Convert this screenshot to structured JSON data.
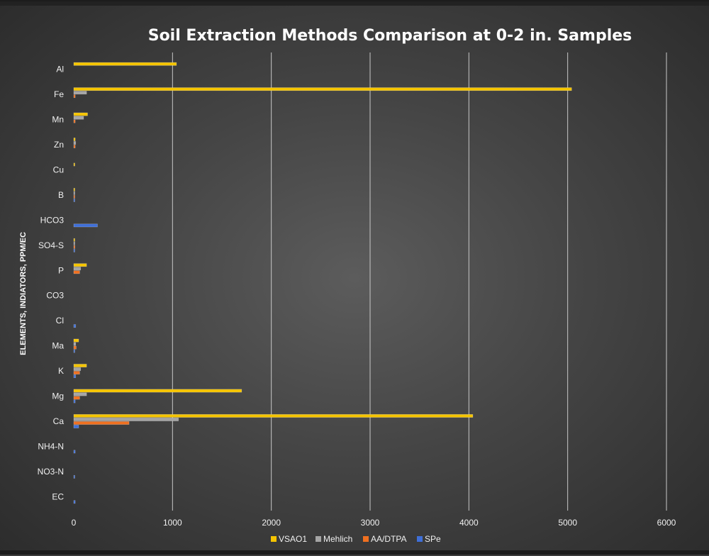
{
  "chart_data": {
    "type": "bar",
    "orientation": "horizontal",
    "title": "Soil Extraction Methods Comparison at 0-2 in. Samples",
    "ylabel": "ELEMENTS, INDIATORS, PPM/EC",
    "xlabel": "",
    "xlim": [
      0,
      6000
    ],
    "xticks": [
      0,
      1000,
      2000,
      3000,
      4000,
      5000,
      6000
    ],
    "grid": true,
    "legend_position": "bottom",
    "categories": [
      "Al",
      "Fe",
      "Mn",
      "Zn",
      "Cu",
      "B",
      "HCO3",
      "SO4-S",
      "P",
      "CO3",
      "Cl",
      "Ma",
      "K",
      "Mg",
      "Ca",
      "NH4-N",
      "NO3-N",
      "EC"
    ],
    "series": [
      {
        "name": "VSAO1",
        "color": "#f5c400",
        "values": [
          1040,
          5040,
          140,
          15,
          8,
          5,
          0,
          8,
          130,
          0,
          0,
          50,
          130,
          1700,
          4040,
          0,
          0,
          0
        ]
      },
      {
        "name": "Mehlich",
        "color": "#a5a5a5",
        "values": [
          0,
          130,
          100,
          20,
          0,
          10,
          0,
          10,
          70,
          0,
          0,
          20,
          70,
          130,
          1060,
          0,
          0,
          0
        ]
      },
      {
        "name": "AA/DTPA",
        "color": "#f07020",
        "values": [
          0,
          15,
          15,
          15,
          0,
          8,
          0,
          12,
          60,
          0,
          0,
          25,
          60,
          60,
          560,
          0,
          0,
          0
        ]
      },
      {
        "name": "SPe",
        "color": "#3f6fd8",
        "values": [
          0,
          0,
          0,
          0,
          0,
          10,
          240,
          8,
          0,
          0,
          20,
          10,
          20,
          15,
          50,
          15,
          8,
          15
        ]
      }
    ]
  }
}
